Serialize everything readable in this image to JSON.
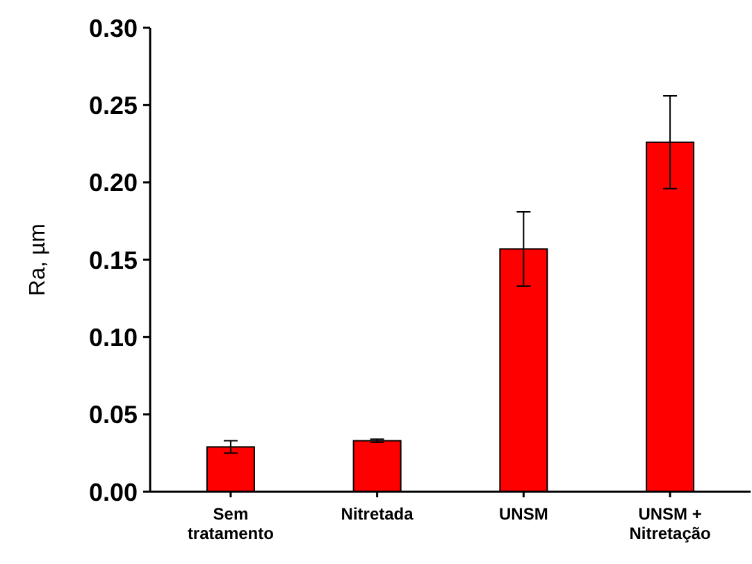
{
  "chart_data": {
    "type": "bar",
    "ylabel": "Ra, µm",
    "categories": [
      "Sem tratamento",
      "Nitretada",
      "UNSM",
      "UNSM + Nitretação"
    ],
    "values": [
      0.029,
      0.033,
      0.157,
      0.226
    ],
    "errors": [
      0.004,
      0.001,
      0.024,
      0.03
    ],
    "color": "#ff0000",
    "ylim": [
      0,
      0.3
    ],
    "yticks": [
      {
        "value": 0,
        "label": "0.00"
      },
      {
        "value": 0.05,
        "label": "0.05"
      },
      {
        "value": 0.1,
        "label": "0.10"
      },
      {
        "value": 0.15,
        "label": "0.15"
      },
      {
        "value": 0.2,
        "label": "0.20"
      },
      {
        "value": 0.25,
        "label": "0.25"
      },
      {
        "value": 0.3,
        "label": "0.30"
      }
    ],
    "grid": false
  }
}
